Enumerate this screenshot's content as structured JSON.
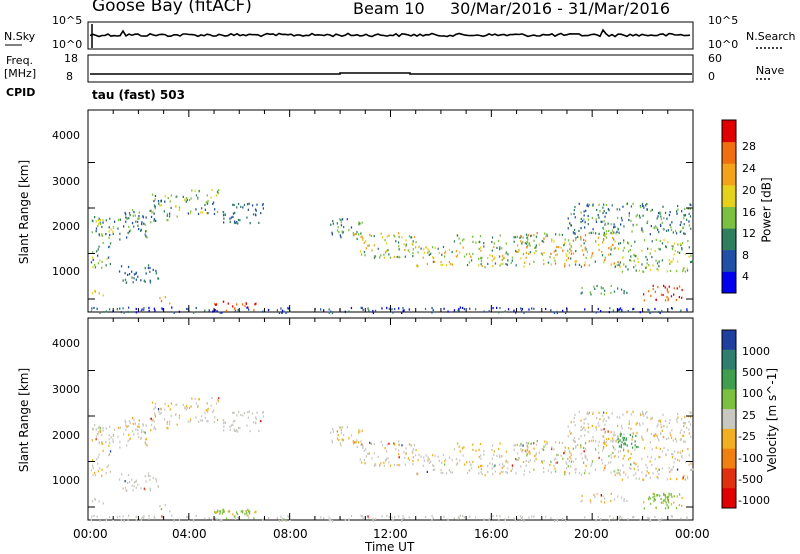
{
  "header": {
    "station": "Goose Bay (fitACF)",
    "beam": "Beam 10",
    "date_range": "30/Mar/2016 - 31/Mar/2016"
  },
  "noise_panel": {
    "left_label": "N.Sky",
    "right_label": "N.Search",
    "left_ticks": [
      "10^5",
      "10^0"
    ],
    "right_ticks": [
      "10^5",
      "10^0"
    ]
  },
  "freq_panel": {
    "left_label_1": "Freq.",
    "left_label_2": "[MHz]",
    "right_label": "Nave",
    "left_ticks": [
      "18",
      "8"
    ],
    "right_ticks": [
      "60",
      "0"
    ]
  },
  "cpid": {
    "label": "CPID",
    "value": "tau (fast) 503"
  },
  "chart_data": [
    {
      "type": "heatmap",
      "title": "",
      "ylabel": "Slant Range [km]",
      "xlabel": "",
      "yticks": [
        "1000",
        "2000",
        "3000",
        "4000"
      ],
      "ylim": [
        200,
        4600
      ],
      "colorbar_label": "Power [dB]",
      "colorbar_ticks": [
        "4",
        "8",
        "12",
        "16",
        "20",
        "24",
        "28"
      ],
      "colors": [
        "#0000ee",
        "#1f4fa6",
        "#2f7f5f",
        "#7cc040",
        "#e6d21a",
        "#f4a21a",
        "#f07010",
        "#e00000"
      ]
    },
    {
      "type": "heatmap",
      "title": "",
      "ylabel": "Slant Range [km]",
      "xlabel": "Time UT",
      "xticks": [
        "00:00",
        "04:00",
        "08:00",
        "12:00",
        "16:00",
        "20:00",
        "00:00"
      ],
      "yticks": [
        "1000",
        "2000",
        "3000",
        "4000"
      ],
      "ylim": [
        200,
        4600
      ],
      "colorbar_label": "Velocity [m s^-1]",
      "colorbar_ticks": [
        "1000",
        "500",
        "100",
        "25",
        "-25",
        "-100",
        "-500",
        "-1000"
      ],
      "colors": [
        "#1f3f9f",
        "#2f7f6f",
        "#3f9f4f",
        "#7cc040",
        "#c8c8c0",
        "#f0b020",
        "#f08010",
        "#e03010",
        "#e00000"
      ]
    }
  ]
}
